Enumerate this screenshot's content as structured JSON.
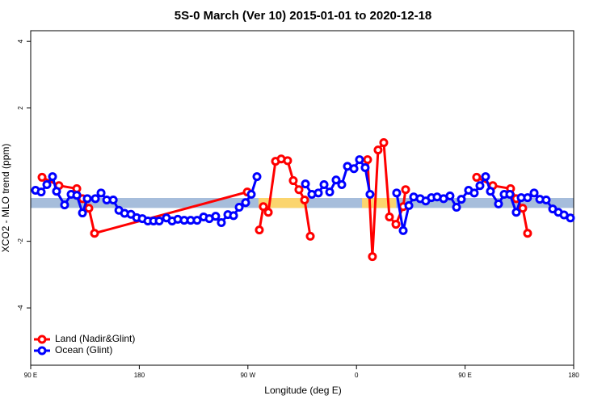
{
  "chart_data": {
    "type": "line",
    "title": "5S-0 March (Ver 10)   2015-01-01 to 2020-12-18",
    "xlabel": "Longitude (deg E)",
    "ylabel": "XCO2 - MLO trend (ppm)",
    "xlim": [
      90,
      540
    ],
    "ylim": [
      -5.72,
      4.32
    ],
    "xticks": [
      {
        "value": 90,
        "label": "90 E"
      },
      180,
      {
        "value": 270,
        "label": "90 W"
      },
      {
        "value": 360,
        "label": "0"
      },
      {
        "value": 450,
        "label": "90 E"
      },
      {
        "value": 540,
        "label": "180"
      }
    ],
    "yticks": [
      -4,
      -2,
      2,
      4
    ],
    "band": [
      -0.7,
      -1.0
    ],
    "band_color": "#a6bddb",
    "highlight_ranges": [
      [
        278.8,
        319.0
      ],
      [
        364.6,
        392.7
      ]
    ],
    "highlight_color": "#fbd56e",
    "legend": "bottom-left",
    "series": [
      {
        "name": "Land (Nadir&Glint)",
        "color": "#ff0000",
        "x": [
          99.4,
          113.4,
          128.2,
          132.9,
          138.2,
          142.9,
          269.5,
          null,
          279.5,
          282.8,
          286.9,
          292.9,
          297.6,
          302.9,
          307.6,
          312.3,
          317.0,
          321.7,
          null,
          369.2,
          373.2,
          377.9,
          382.6,
          387.3,
          392.7,
          398.7,
          400.7,
          null,
          459.6,
          473.0,
          487.7,
          492.4,
          497.8,
          501.8
        ],
        "values": [
          -0.08,
          -0.33,
          -0.42,
          -0.72,
          -1.01,
          -1.76,
          -0.52,
          null,
          -1.66,
          -0.96,
          -1.13,
          0.4,
          0.47,
          0.42,
          -0.18,
          -0.45,
          -0.76,
          -1.85,
          null,
          0.45,
          -2.46,
          0.74,
          0.96,
          -1.27,
          -1.49,
          -0.96,
          -0.45,
          null,
          -0.08,
          -0.33,
          -0.42,
          -0.72,
          -1.01,
          -1.76
        ]
      },
      {
        "name": "Ocean (Glint)",
        "color": "#0000ff",
        "x": [
          94.0,
          98.7,
          103.4,
          108.1,
          111.4,
          118.1,
          123.5,
          128.2,
          132.9,
          136.9,
          143.6,
          148.3,
          153.0,
          158.4,
          163.1,
          167.8,
          173.1,
          177.8,
          182.5,
          187.1,
          191.8,
          196.5,
          202.5,
          207.2,
          211.9,
          217.2,
          222.6,
          227.9,
          233.3,
          238.0,
          243.3,
          248.0,
          253.4,
          258.1,
          262.8,
          268.1,
          272.8,
          277.5,
          null,
          317.7,
          323.0,
          328.4,
          333.1,
          337.8,
          343.1,
          347.8,
          352.5,
          357.9,
          362.5,
          367.2,
          371.2,
          null,
          393.3,
          398.7,
          403.4,
          407.4,
          412.8,
          417.4,
          422.1,
          426.8,
          432.2,
          437.5,
          442.9,
          446.9,
          452.9,
          457.6,
          462.3,
          467.0,
          471.0,
          477.7,
          482.4,
          487.1,
          492.4,
          496.5,
          501.8,
          507.2,
          511.9,
          517.2,
          522.6,
          527.3,
          532.0,
          537.3
        ],
        "values": [
          -0.47,
          -0.52,
          -0.3,
          -0.06,
          -0.5,
          -0.91,
          -0.59,
          -0.62,
          -1.15,
          -0.72,
          -0.72,
          -0.55,
          -0.76,
          -0.76,
          -1.07,
          -1.16,
          -1.19,
          -1.29,
          -1.32,
          -1.39,
          -1.39,
          -1.39,
          -1.3,
          -1.39,
          -1.34,
          -1.37,
          -1.37,
          -1.37,
          -1.27,
          -1.32,
          -1.25,
          -1.44,
          -1.2,
          -1.23,
          -0.98,
          -0.84,
          -0.59,
          -0.06,
          null,
          -0.28,
          -0.59,
          -0.55,
          -0.3,
          -0.52,
          -0.16,
          -0.3,
          0.25,
          0.18,
          0.45,
          0.21,
          -0.59,
          null,
          -0.55,
          -1.68,
          -0.93,
          -0.67,
          -0.72,
          -0.79,
          -0.69,
          -0.67,
          -0.72,
          -0.64,
          -0.98,
          -0.74,
          -0.47,
          -0.55,
          -0.33,
          -0.06,
          -0.5,
          -0.88,
          -0.59,
          -0.59,
          -1.13,
          -0.69,
          -0.69,
          -0.55,
          -0.74,
          -0.76,
          -1.03,
          -1.13,
          -1.21,
          -1.3
        ]
      }
    ]
  }
}
